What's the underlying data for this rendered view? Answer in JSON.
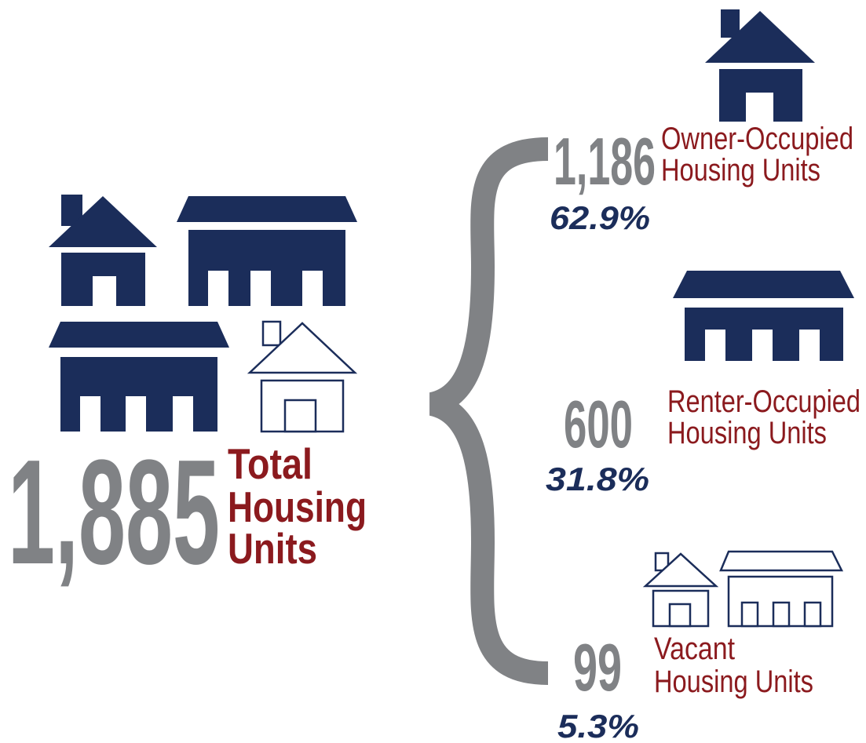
{
  "total": {
    "value": "1,885",
    "label": [
      "Total",
      "Housing",
      "Units"
    ]
  },
  "breakdown": [
    {
      "value": "1,186",
      "percent": "62.9%",
      "label": [
        "Owner-Occupied",
        "Housing Units"
      ]
    },
    {
      "value": "600",
      "percent": "31.8%",
      "label": [
        "Renter-Occupied",
        "Housing Units"
      ]
    },
    {
      "value": "99",
      "percent": "5.3%",
      "label": [
        "Vacant",
        "Housing Units"
      ]
    }
  ]
}
